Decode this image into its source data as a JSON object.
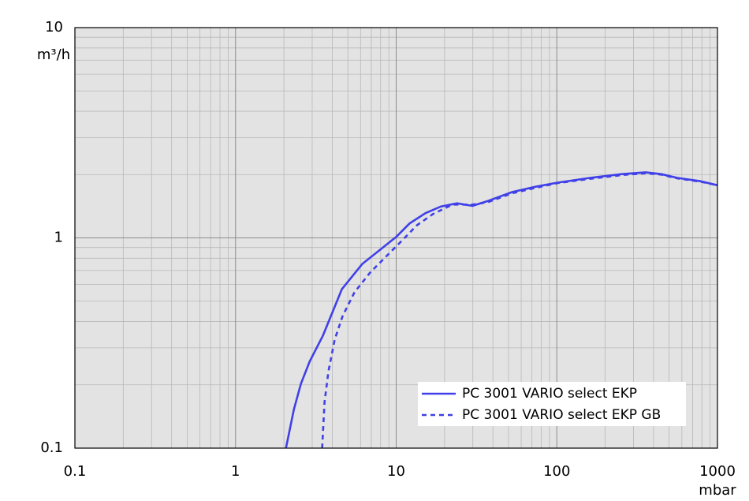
{
  "chart_data": {
    "type": "line",
    "log_x": true,
    "log_y": true,
    "grid": true,
    "x_label": "mbar",
    "y_label": "m³/h",
    "xlim": [
      0.1,
      1000
    ],
    "xticks": [
      0.1,
      1,
      10,
      100,
      1000
    ],
    "ylim": [
      0.1,
      10
    ],
    "yticks": [
      0.1,
      1,
      10
    ],
    "legend_position": "lower right",
    "series": [
      {
        "name": "PC 3001 VARIO select EKP",
        "color": "#4040e8",
        "style": "solid",
        "x": [
          2.06,
          2.31,
          2.55,
          2.89,
          3.5,
          4.59,
          6.15,
          7.71,
          10,
          12.1,
          15.2,
          19.0,
          23.9,
          29.9,
          37.4,
          52.6,
          73.7,
          100,
          162,
          254,
          357,
          447,
          560,
          784,
          1000
        ],
        "values": [
          0.1,
          0.153,
          0.202,
          0.258,
          0.343,
          0.57,
          0.752,
          0.863,
          1.01,
          1.17,
          1.31,
          1.41,
          1.46,
          1.42,
          1.5,
          1.65,
          1.75,
          1.83,
          1.93,
          2.01,
          2.05,
          2.01,
          1.93,
          1.86,
          1.78
        ]
      },
      {
        "name": "PC 3001 VARIO select EKP GB",
        "color": "#4040e8",
        "style": "dashed",
        "x": [
          3.46,
          3.58,
          3.79,
          4.14,
          4.64,
          5.5,
          6.88,
          8.61,
          10.8,
          13.5,
          17.0,
          22.4,
          29.9,
          37.4,
          52.6,
          73.7,
          100,
          162,
          254,
          357,
          447,
          560,
          784,
          1000
        ],
        "values": [
          0.1,
          0.165,
          0.232,
          0.328,
          0.425,
          0.551,
          0.684,
          0.813,
          0.966,
          1.15,
          1.3,
          1.44,
          1.44,
          1.48,
          1.63,
          1.73,
          1.82,
          1.91,
          1.99,
          2.03,
          2.0,
          1.92,
          1.85,
          1.78
        ]
      }
    ]
  }
}
